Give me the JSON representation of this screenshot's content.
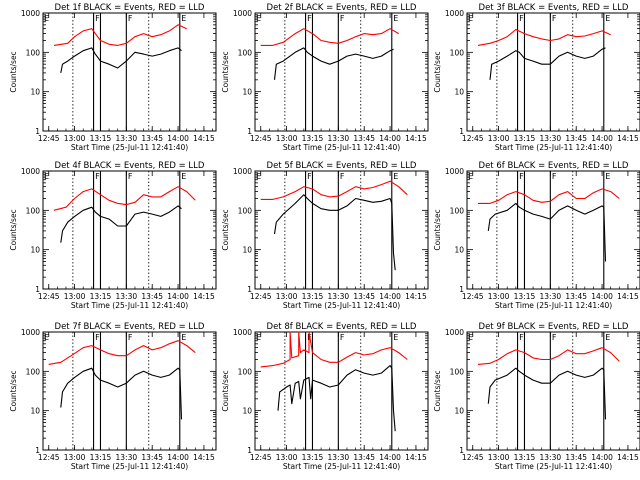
{
  "chart_data": [
    {
      "type": "line",
      "title": "Det 1f BLACK = Events, RED = LLD",
      "xlabel": "Start Time (25-Jul-11 12:41:40)",
      "ylabel": "Counts/sec",
      "x_tick_labels": [
        "12:45",
        "13:00",
        "13:15",
        "13:30",
        "13:45",
        "14:00",
        "14:15"
      ],
      "y_tick_labels": [
        "1",
        "10",
        "100",
        "1000"
      ],
      "yscale": "log",
      "ylim": [
        1,
        1000
      ],
      "marker_labels": [
        "E",
        "F",
        "F",
        "E"
      ],
      "series": [
        {
          "color": "#ff0000",
          "x": [
            "12:48",
            "12:56",
            "13:00",
            "13:05",
            "13:10",
            "13:12",
            "13:15",
            "13:20",
            "13:25",
            "13:30",
            "13:35",
            "13:40",
            "13:45",
            "13:50",
            "13:55",
            "14:00",
            "14:05"
          ],
          "values": [
            150,
            170,
            250,
            350,
            400,
            300,
            200,
            160,
            150,
            170,
            250,
            300,
            250,
            280,
            350,
            500,
            400
          ]
        },
        {
          "color": "#000000",
          "x": [
            "12:52",
            "12:53",
            "12:56",
            "13:00",
            "13:05",
            "13:10",
            "13:12",
            "13:15",
            "13:20",
            "13:25",
            "13:30",
            "13:35",
            "13:40",
            "13:45",
            "13:50",
            "13:55",
            "14:00",
            "14:02"
          ],
          "values": [
            30,
            50,
            60,
            80,
            110,
            130,
            90,
            60,
            50,
            40,
            60,
            100,
            90,
            80,
            90,
            110,
            130,
            110
          ]
        }
      ]
    },
    {
      "type": "line",
      "title": "Det 2f BLACK = Events, RED = LLD",
      "xlabel": "Start Time (25-Jul-11 12:41:40)",
      "ylabel": "Counts/sec",
      "x_tick_labels": [
        "12:45",
        "13:00",
        "13:15",
        "13:30",
        "13:45",
        "14:00",
        "14:15"
      ],
      "y_tick_labels": [
        "1",
        "10",
        "100",
        "1000"
      ],
      "yscale": "log",
      "ylim": [
        1,
        1000
      ],
      "marker_labels": [
        "E",
        "F",
        "F",
        "E"
      ],
      "series": [
        {
          "color": "#ff0000",
          "x": [
            "12:45",
            "12:52",
            "12:58",
            "13:05",
            "13:10",
            "13:15",
            "13:20",
            "13:25",
            "13:30",
            "13:35",
            "13:40",
            "13:45",
            "13:50",
            "13:55",
            "14:00",
            "14:05"
          ],
          "values": [
            150,
            150,
            180,
            300,
            400,
            300,
            200,
            180,
            170,
            200,
            250,
            300,
            280,
            300,
            400,
            300
          ]
        },
        {
          "color": "#000000",
          "x": [
            "12:53",
            "12:54",
            "12:58",
            "13:05",
            "13:10",
            "13:12",
            "13:15",
            "13:20",
            "13:25",
            "13:30",
            "13:35",
            "13:40",
            "13:45",
            "13:50",
            "13:55",
            "14:00",
            "14:02"
          ],
          "values": [
            20,
            50,
            60,
            100,
            130,
            100,
            80,
            60,
            50,
            60,
            80,
            90,
            80,
            70,
            80,
            110,
            120
          ]
        }
      ]
    },
    {
      "type": "line",
      "title": "Det 3f BLACK = Events, RED = LLD",
      "xlabel": "Start Time (25-Jul-11 12:41:40)",
      "ylabel": "Counts/sec",
      "x_tick_labels": [
        "12:45",
        "13:00",
        "13:15",
        "13:30",
        "13:45",
        "14:00",
        "14:15"
      ],
      "y_tick_labels": [
        "1",
        "10",
        "100",
        "1000"
      ],
      "yscale": "log",
      "ylim": [
        1,
        1000
      ],
      "marker_labels": [
        "E",
        "F",
        "F",
        "E"
      ],
      "series": [
        {
          "color": "#ff0000",
          "x": [
            "12:48",
            "12:55",
            "13:00",
            "13:05",
            "13:10",
            "13:15",
            "13:20",
            "13:25",
            "13:30",
            "13:35",
            "13:40",
            "13:45",
            "13:50",
            "13:55",
            "14:00",
            "14:05"
          ],
          "values": [
            150,
            170,
            200,
            250,
            380,
            300,
            250,
            220,
            200,
            220,
            280,
            250,
            260,
            300,
            350,
            280
          ]
        },
        {
          "color": "#000000",
          "x": [
            "12:55",
            "12:56",
            "13:00",
            "13:05",
            "13:10",
            "13:12",
            "13:15",
            "13:20",
            "13:25",
            "13:30",
            "13:35",
            "13:40",
            "13:45",
            "13:50",
            "13:55",
            "14:00",
            "14:02"
          ],
          "values": [
            20,
            50,
            60,
            80,
            110,
            100,
            70,
            60,
            50,
            50,
            80,
            100,
            80,
            70,
            80,
            120,
            130
          ]
        }
      ]
    },
    {
      "type": "line",
      "title": "Det 4f BLACK = Events, RED = LLD",
      "xlabel": "Start Time (25-Jul-11 12:41:40)",
      "ylabel": "Counts/sec",
      "x_tick_labels": [
        "12:45",
        "13:00",
        "13:15",
        "13:30",
        "13:45",
        "14:00",
        "14:15"
      ],
      "y_tick_labels": [
        "1",
        "10",
        "100",
        "1000"
      ],
      "yscale": "log",
      "ylim": [
        1,
        1000
      ],
      "marker_labels": [
        "E",
        "F",
        "F",
        "E"
      ],
      "series": [
        {
          "color": "#ff0000",
          "x": [
            "12:48",
            "12:55",
            "13:00",
            "13:05",
            "13:10",
            "13:15",
            "13:20",
            "13:25",
            "13:30",
            "13:35",
            "13:40",
            "13:45",
            "13:50",
            "13:55",
            "14:00",
            "14:05",
            "14:10"
          ],
          "values": [
            100,
            120,
            200,
            300,
            350,
            250,
            180,
            150,
            140,
            160,
            250,
            220,
            220,
            300,
            400,
            300,
            180
          ]
        },
        {
          "color": "#000000",
          "x": [
            "12:52",
            "12:53",
            "12:56",
            "13:00",
            "13:05",
            "13:10",
            "13:12",
            "13:15",
            "13:20",
            "13:25",
            "13:30",
            "13:35",
            "13:40",
            "13:45",
            "13:50",
            "13:55",
            "14:00",
            "14:02"
          ],
          "values": [
            15,
            30,
            50,
            70,
            100,
            120,
            90,
            70,
            60,
            40,
            40,
            80,
            90,
            80,
            70,
            90,
            130,
            110
          ]
        }
      ]
    },
    {
      "type": "line",
      "title": "Det 5f BLACK = Events, RED = LLD",
      "xlabel": "Start Time (25-Jul-11 12:41:40)",
      "ylabel": "Counts/sec",
      "x_tick_labels": [
        "12:45",
        "13:00",
        "13:15",
        "13:30",
        "13:45",
        "14:00",
        "14:15"
      ],
      "y_tick_labels": [
        "1",
        "10",
        "100",
        "1000"
      ],
      "yscale": "log",
      "ylim": [
        1,
        1000
      ],
      "marker_labels": [
        "E",
        "F",
        "F",
        "E"
      ],
      "series": [
        {
          "color": "#ff0000",
          "x": [
            "12:45",
            "12:52",
            "12:58",
            "13:05",
            "13:10",
            "13:15",
            "13:20",
            "13:25",
            "13:30",
            "13:35",
            "13:40",
            "13:45",
            "13:50",
            "13:55",
            "14:00",
            "14:05",
            "14:10"
          ],
          "values": [
            190,
            190,
            220,
            300,
            400,
            350,
            250,
            220,
            230,
            300,
            400,
            350,
            380,
            450,
            550,
            400,
            250
          ]
        },
        {
          "color": "#000000",
          "x": [
            "12:53",
            "12:54",
            "12:58",
            "13:05",
            "13:10",
            "13:12",
            "13:15",
            "13:20",
            "13:25",
            "13:30",
            "13:35",
            "13:40",
            "13:45",
            "13:50",
            "13:55",
            "14:00",
            "14:01",
            "14:02",
            "14:03"
          ],
          "values": [
            25,
            50,
            80,
            150,
            250,
            200,
            150,
            110,
            100,
            100,
            130,
            200,
            180,
            160,
            170,
            200,
            150,
            8,
            3
          ]
        }
      ]
    },
    {
      "type": "line",
      "title": "Det 6f BLACK = Events, RED = LLD",
      "xlabel": "Start Time (25-Jul-11 12:41:40)",
      "ylabel": "Counts/sec",
      "x_tick_labels": [
        "12:45",
        "13:00",
        "13:15",
        "13:30",
        "13:45",
        "14:00",
        "14:15"
      ],
      "y_tick_labels": [
        "1",
        "10",
        "100",
        "1000"
      ],
      "yscale": "log",
      "ylim": [
        1,
        1000
      ],
      "marker_labels": [
        "E",
        "F",
        "F",
        "E"
      ],
      "series": [
        {
          "color": "#ff0000",
          "x": [
            "12:48",
            "12:55",
            "13:00",
            "13:05",
            "13:10",
            "13:15",
            "13:20",
            "13:25",
            "13:30",
            "13:35",
            "13:40",
            "13:45",
            "13:50",
            "13:55",
            "14:00",
            "14:05",
            "14:10"
          ],
          "values": [
            150,
            150,
            180,
            250,
            300,
            250,
            180,
            160,
            170,
            250,
            300,
            200,
            200,
            280,
            350,
            300,
            200
          ]
        },
        {
          "color": "#000000",
          "x": [
            "12:54",
            "12:55",
            "12:58",
            "13:05",
            "13:10",
            "13:12",
            "13:15",
            "13:20",
            "13:25",
            "13:30",
            "13:35",
            "13:40",
            "13:45",
            "13:50",
            "13:55",
            "14:00",
            "14:01",
            "14:02"
          ],
          "values": [
            30,
            60,
            80,
            100,
            150,
            120,
            100,
            80,
            70,
            60,
            100,
            130,
            100,
            80,
            100,
            130,
            120,
            5
          ]
        }
      ]
    },
    {
      "type": "line",
      "title": "Det 7f BLACK = Events, RED = LLD",
      "xlabel": "Start Time (25-Jul-11 12:41:40)",
      "ylabel": "Counts/sec",
      "x_tick_labels": [
        "12:45",
        "13:00",
        "13:15",
        "13:30",
        "13:45",
        "14:00",
        "14:15"
      ],
      "y_tick_labels": [
        "1",
        "10",
        "100",
        "1000"
      ],
      "yscale": "log",
      "ylim": [
        1,
        1000
      ],
      "marker_labels": [
        "E",
        "F",
        "F",
        "E"
      ],
      "series": [
        {
          "color": "#ff0000",
          "x": [
            "12:45",
            "12:52",
            "12:58",
            "13:05",
            "13:10",
            "13:15",
            "13:20",
            "13:25",
            "13:30",
            "13:35",
            "13:40",
            "13:45",
            "13:50",
            "13:55",
            "14:00",
            "14:05",
            "14:10"
          ],
          "values": [
            150,
            170,
            250,
            400,
            450,
            350,
            280,
            250,
            250,
            350,
            450,
            350,
            400,
            500,
            600,
            450,
            300
          ]
        },
        {
          "color": "#000000",
          "x": [
            "12:52",
            "12:53",
            "12:56",
            "13:00",
            "13:05",
            "13:10",
            "13:12",
            "13:15",
            "13:20",
            "13:25",
            "13:30",
            "13:35",
            "13:40",
            "13:45",
            "13:50",
            "13:55",
            "14:00",
            "14:01",
            "14:02"
          ],
          "values": [
            12,
            30,
            50,
            70,
            100,
            120,
            80,
            60,
            50,
            40,
            50,
            80,
            100,
            80,
            70,
            80,
            120,
            110,
            6
          ]
        }
      ]
    },
    {
      "type": "line",
      "title": "Det 8f BLACK = Events, RED = LLD",
      "xlabel": "Start Time (25-Jul-11 12:41:40)",
      "ylabel": "Counts/sec",
      "x_tick_labels": [
        "12:45",
        "13:00",
        "13:15",
        "13:30",
        "13:45",
        "14:00",
        "14:15"
      ],
      "y_tick_labels": [
        "1",
        "10",
        "100",
        "1000"
      ],
      "yscale": "log",
      "ylim": [
        1,
        1000
      ],
      "marker_labels": [
        "E",
        "F",
        "F",
        "E"
      ],
      "series": [
        {
          "color": "#ff0000",
          "x": [
            "12:45",
            "12:52",
            "12:58",
            "13:02",
            "13:02",
            "13:03",
            "13:07",
            "13:07",
            "13:08",
            "13:10",
            "13:13",
            "13:13",
            "13:15",
            "13:20",
            "13:25",
            "13:30",
            "13:35",
            "13:40",
            "13:45",
            "13:50",
            "13:55",
            "14:00",
            "14:05",
            "14:10"
          ],
          "values": [
            130,
            140,
            160,
            200,
            1000,
            220,
            250,
            1000,
            300,
            350,
            300,
            1000,
            300,
            200,
            170,
            170,
            230,
            300,
            260,
            280,
            350,
            400,
            300,
            200
          ]
        },
        {
          "color": "#000000",
          "x": [
            "12:55",
            "12:56",
            "13:00",
            "13:02",
            "13:03",
            "13:05",
            "13:07",
            "13:08",
            "13:10",
            "13:13",
            "13:14",
            "13:15",
            "13:20",
            "13:25",
            "13:30",
            "13:35",
            "13:40",
            "13:45",
            "13:50",
            "13:55",
            "14:00",
            "14:01",
            "14:02",
            "14:03"
          ],
          "values": [
            10,
            30,
            40,
            45,
            15,
            50,
            55,
            20,
            60,
            70,
            20,
            60,
            50,
            40,
            45,
            80,
            110,
            90,
            80,
            90,
            140,
            120,
            10,
            3
          ]
        }
      ]
    },
    {
      "type": "line",
      "title": "Det 9f BLACK = Events, RED = LLD",
      "xlabel": "Start Time (25-Jul-11 12:41:40)",
      "ylabel": "Counts/sec",
      "x_tick_labels": [
        "12:45",
        "13:00",
        "13:15",
        "13:30",
        "13:45",
        "14:00",
        "14:15"
      ],
      "y_tick_labels": [
        "1",
        "10",
        "100",
        "1000"
      ],
      "yscale": "log",
      "ylim": [
        1,
        1000
      ],
      "marker_labels": [
        "E",
        "F",
        "F",
        "E"
      ],
      "series": [
        {
          "color": "#ff0000",
          "x": [
            "12:48",
            "12:55",
            "13:00",
            "13:05",
            "13:10",
            "13:15",
            "13:20",
            "13:25",
            "13:30",
            "13:35",
            "13:40",
            "13:45",
            "13:50",
            "13:55",
            "14:00",
            "14:05",
            "14:10"
          ],
          "values": [
            150,
            160,
            200,
            280,
            350,
            300,
            220,
            200,
            200,
            250,
            350,
            280,
            280,
            330,
            400,
            300,
            180
          ]
        },
        {
          "color": "#000000",
          "x": [
            "12:54",
            "12:55",
            "12:58",
            "13:05",
            "13:10",
            "13:12",
            "13:15",
            "13:20",
            "13:25",
            "13:30",
            "13:35",
            "13:40",
            "13:45",
            "13:50",
            "13:55",
            "14:00",
            "14:01",
            "14:02"
          ],
          "values": [
            15,
            40,
            60,
            80,
            120,
            100,
            80,
            60,
            50,
            50,
            80,
            100,
            80,
            70,
            80,
            120,
            110,
            6
          ]
        }
      ]
    }
  ]
}
